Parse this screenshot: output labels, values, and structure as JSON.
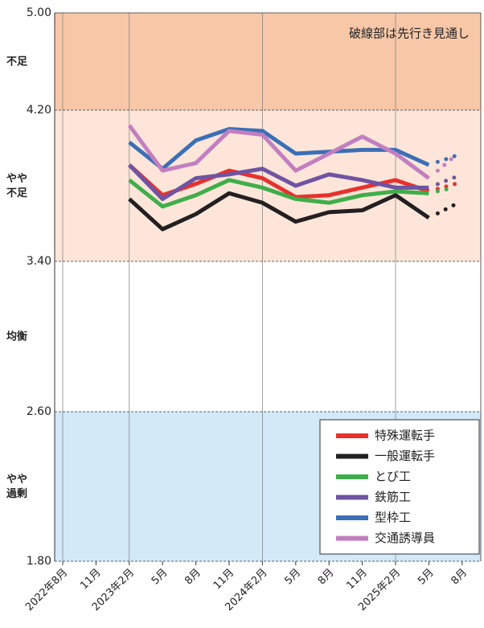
{
  "chart_data": {
    "type": "line",
    "annotation": "破線部は先行き見通し",
    "categories": [
      "2022年8月",
      "11月",
      "2023年2月",
      "5月",
      "8月",
      "11月",
      "2024年2月",
      "5月",
      "8月",
      "11月",
      "2025年2月",
      "5月",
      "8月"
    ],
    "ylim": [
      1.8,
      5.0
    ],
    "yticks": [
      {
        "value": 1.8,
        "label": "1.80"
      },
      {
        "value": 2.6,
        "label": "2.60"
      },
      {
        "value": 3.4,
        "label": "3.40"
      },
      {
        "value": 4.2,
        "label": "4.20"
      },
      {
        "value": 5.0,
        "label": "5.00"
      }
    ],
    "bands": [
      {
        "label": "やや\n過剰",
        "from": 1.8,
        "to": 2.6,
        "color": "#d3e9f8"
      },
      {
        "label": "均衡",
        "from": 2.6,
        "to": 3.4,
        "color": "#ffffff"
      },
      {
        "label": "やや\n不足",
        "from": 3.4,
        "to": 4.2,
        "color": "#fde6d9"
      },
      {
        "label": "不足",
        "from": 4.2,
        "to": 5.0,
        "color": "#f7c7a8"
      }
    ],
    "series": [
      {
        "name": "特殊運転手",
        "color": "#e8312d",
        "values": [
          null,
          null,
          3.91,
          3.75,
          3.81,
          3.88,
          3.84,
          3.74,
          3.75,
          3.79,
          3.83,
          3.77,
          null
        ],
        "forecast": [
          null,
          null,
          null,
          null,
          null,
          null,
          null,
          null,
          null,
          null,
          null,
          null,
          3.82
        ]
      },
      {
        "name": "一般運転手",
        "color": "#231f20",
        "values": [
          null,
          null,
          3.73,
          3.57,
          3.65,
          3.76,
          3.71,
          3.61,
          3.66,
          3.67,
          3.75,
          3.63,
          null
        ],
        "forecast": [
          null,
          null,
          null,
          null,
          null,
          null,
          null,
          null,
          null,
          null,
          null,
          null,
          3.72
        ]
      },
      {
        "name": "とび工",
        "color": "#3fae4a",
        "values": [
          null,
          null,
          3.83,
          3.69,
          3.75,
          3.83,
          3.79,
          3.73,
          3.71,
          3.75,
          3.77,
          3.76,
          null
        ],
        "forecast": [
          null,
          null,
          null,
          null,
          null,
          null,
          null,
          null,
          null,
          null,
          null,
          null,
          3.8
        ]
      },
      {
        "name": "鉄筋工",
        "color": "#6f54a3",
        "values": [
          null,
          null,
          3.91,
          3.73,
          3.84,
          3.86,
          3.89,
          3.8,
          3.86,
          3.83,
          3.79,
          3.79,
          null
        ],
        "forecast": [
          null,
          null,
          null,
          null,
          null,
          null,
          null,
          null,
          null,
          null,
          null,
          null,
          3.86
        ]
      },
      {
        "name": "型枠工",
        "color": "#3b6fb6",
        "values": [
          null,
          null,
          4.03,
          3.89,
          4.04,
          4.1,
          4.09,
          3.97,
          3.98,
          3.99,
          3.99,
          3.91,
          null
        ],
        "forecast": [
          null,
          null,
          null,
          null,
          null,
          null,
          null,
          null,
          null,
          null,
          null,
          null,
          3.97
        ]
      },
      {
        "name": "交通誘導員",
        "color": "#c17fc0",
        "values": [
          null,
          null,
          4.12,
          3.88,
          3.92,
          4.09,
          4.07,
          3.88,
          3.97,
          4.06,
          3.97,
          3.84,
          null
        ],
        "forecast": [
          null,
          null,
          null,
          null,
          null,
          null,
          null,
          null,
          null,
          null,
          null,
          null,
          3.99
        ]
      }
    ]
  }
}
